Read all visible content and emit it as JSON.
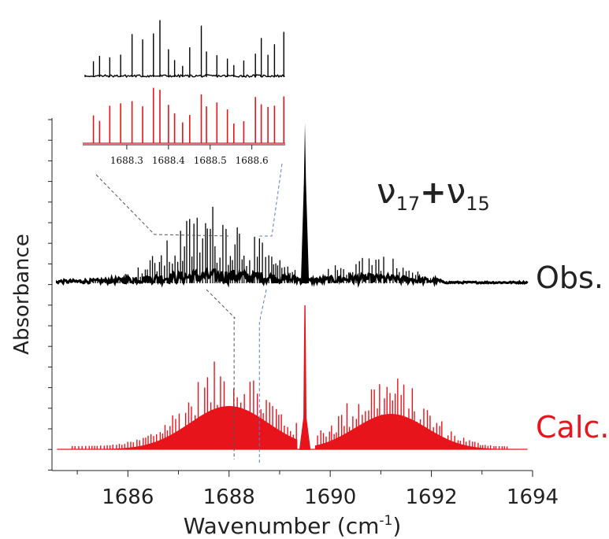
{
  "chart_data": {
    "type": "line",
    "xlabel": "Wavenumber (cm-1)",
    "xlabel_main": "Wavenumber (cm",
    "xlabel_sup": "-1",
    "xlabel_close": ")",
    "ylabel": "Absorbance",
    "xlim": [
      1684.5,
      1694
    ],
    "xticks": [
      "1686",
      "1688",
      "1690",
      "1692",
      "1694"
    ],
    "annotation": {
      "nu": "ν",
      "sub1": "17",
      "plus": "+",
      "sub2": "15"
    },
    "series": [
      {
        "name": "Obs.",
        "color": "#000000",
        "description": "dense rovibrational line spectrum with a sharp Q-branch near 1689.5",
        "q_branch_x": 1689.5,
        "q_branch_height_rel": 1.0,
        "p_branch_peak_x": 1687.7,
        "r_branch_peak_x": 1690.8
      },
      {
        "name": "Calc.",
        "color": "#e8141c",
        "description": "simulated line spectrum with P branch (1685–1689.4), Q branch at 1689.5 and R branch (1689.7–1693.5)",
        "q_branch_x": 1689.5,
        "p_branch_peak_x": 1688.0,
        "r_branch_peak_x": 1691.0
      }
    ],
    "inset": {
      "xticks": [
        "1688.3",
        "1688.4",
        "1688.5",
        "1688.6"
      ],
      "xlim": [
        1688.2,
        1688.68
      ],
      "zoom_region": [
        1688.1,
        1688.6
      ]
    }
  }
}
